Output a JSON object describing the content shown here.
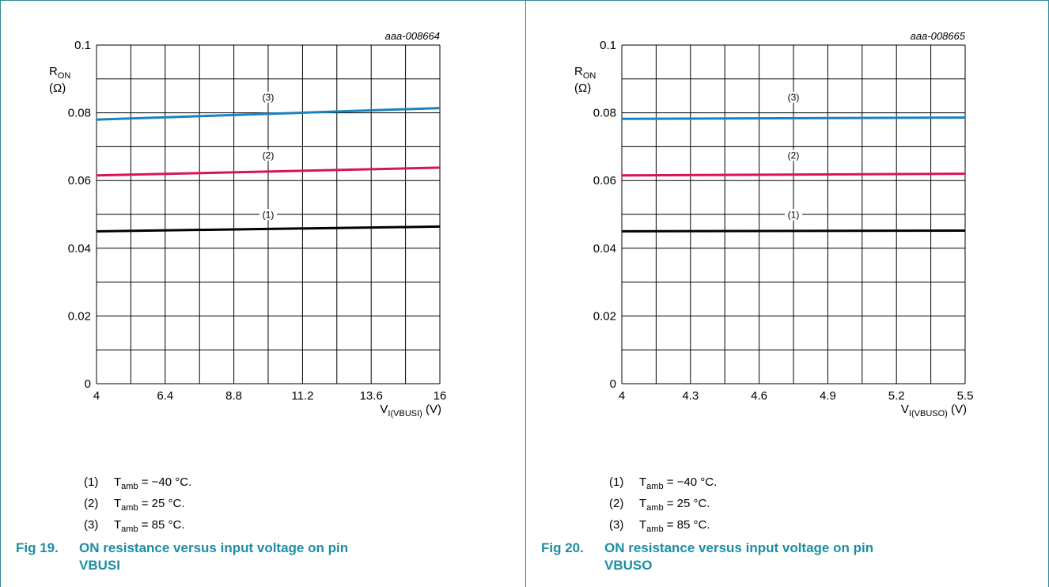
{
  "chart_data": [
    {
      "type": "line",
      "id_label": "aaa-008664",
      "ylabel_main": "R",
      "ylabel_sub": "ON",
      "ylabel_unit": "(Ω)",
      "xlabel_main": "V",
      "xlabel_sub": "I(VBUSI)",
      "xlabel_unit": "(V)",
      "xlim": [
        4,
        16
      ],
      "ylim": [
        0,
        0.1
      ],
      "xticks": [
        4,
        6.4,
        8.8,
        11.2,
        13.6,
        16
      ],
      "xtick_labels": [
        "4",
        "6.4",
        "8.8",
        "11.2",
        "13.6",
        "16"
      ],
      "yticks": [
        0,
        0.02,
        0.04,
        0.06,
        0.08,
        0.1
      ],
      "ytick_labels": [
        "0",
        "0.02",
        "0.04",
        "0.06",
        "0.08",
        "0.1"
      ],
      "grid": true,
      "series": [
        {
          "name": "(1)",
          "color": "#000000",
          "x": [
            4,
            16
          ],
          "y": [
            0.045,
            0.0464
          ]
        },
        {
          "name": "(2)",
          "color": "#d7145a",
          "x": [
            4,
            16
          ],
          "y": [
            0.0615,
            0.0638
          ]
        },
        {
          "name": "(3)",
          "color": "#1a83bf",
          "x": [
            4,
            16
          ],
          "y": [
            0.078,
            0.0814
          ]
        }
      ],
      "curve_labels": [
        {
          "text": "(1)",
          "x": 10,
          "y": 0.049
        },
        {
          "text": "(2)",
          "x": 10,
          "y": 0.0665
        },
        {
          "text": "(3)",
          "x": 10,
          "y": 0.0837
        }
      ]
    },
    {
      "type": "line",
      "id_label": "aaa-008665",
      "ylabel_main": "R",
      "ylabel_sub": "ON",
      "ylabel_unit": "(Ω)",
      "xlabel_main": "V",
      "xlabel_sub": "I(VBUSO)",
      "xlabel_unit": "(V)",
      "xlim": [
        4,
        5.5
      ],
      "ylim": [
        0,
        0.1
      ],
      "xticks": [
        4,
        4.3,
        4.6,
        4.9,
        5.2,
        5.5
      ],
      "xtick_labels": [
        "4",
        "4.3",
        "4.6",
        "4.9",
        "5.2",
        "5.5"
      ],
      "yticks": [
        0,
        0.02,
        0.04,
        0.06,
        0.08,
        0.1
      ],
      "ytick_labels": [
        "0",
        "0.02",
        "0.04",
        "0.06",
        "0.08",
        "0.1"
      ],
      "grid": true,
      "series": [
        {
          "name": "(1)",
          "color": "#000000",
          "x": [
            4,
            5.5
          ],
          "y": [
            0.045,
            0.0452
          ]
        },
        {
          "name": "(2)",
          "color": "#d7145a",
          "x": [
            4,
            5.5
          ],
          "y": [
            0.0615,
            0.062
          ]
        },
        {
          "name": "(3)",
          "color": "#1a83bf",
          "x": [
            4,
            5.5
          ],
          "y": [
            0.0782,
            0.0786
          ]
        }
      ],
      "curve_labels": [
        {
          "text": "(1)",
          "x": 4.75,
          "y": 0.049
        },
        {
          "text": "(2)",
          "x": 4.75,
          "y": 0.0665
        },
        {
          "text": "(3)",
          "x": 4.75,
          "y": 0.0837
        }
      ]
    }
  ],
  "left": {
    "legend": [
      {
        "num": "(1)",
        "t": "T",
        "sub": "amb",
        "rest": " = −40 °C."
      },
      {
        "num": "(2)",
        "t": "T",
        "sub": "amb",
        "rest": " = 25 °C."
      },
      {
        "num": "(3)",
        "t": "T",
        "sub": "amb",
        "rest": " = 85 °C."
      }
    ],
    "caption_fig": "Fig 19.",
    "caption_line1": "ON resistance versus input voltage on pin",
    "caption_line2": "VBUSI"
  },
  "right": {
    "legend": [
      {
        "num": "(1)",
        "t": "T",
        "sub": "amb",
        "rest": " = −40 °C."
      },
      {
        "num": "(2)",
        "t": "T",
        "sub": "amb",
        "rest": " = 25 °C."
      },
      {
        "num": "(3)",
        "t": "T",
        "sub": "amb",
        "rest": " = 85 °C."
      }
    ],
    "caption_fig": "Fig 20.",
    "caption_line1": "ON resistance versus input voltage on pin",
    "caption_line2": "VBUSO"
  }
}
